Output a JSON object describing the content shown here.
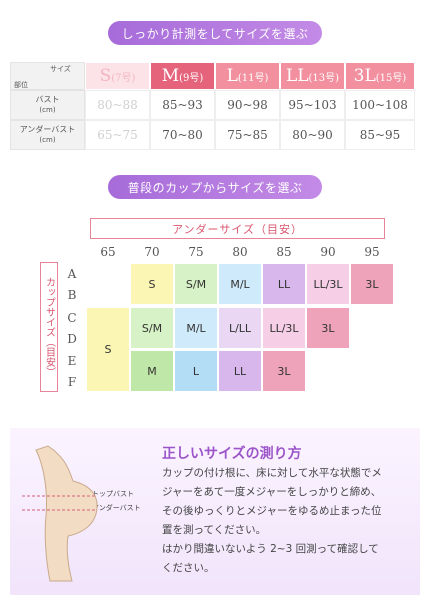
{
  "section1": {
    "heading": "しっかり計測をしてサイズを選ぶ",
    "table": {
      "corner_top": "サイズ",
      "corner_bottom": "部位",
      "sizes": [
        {
          "label": "S",
          "note": "(7号)"
        },
        {
          "label": "M",
          "note": "(9号)"
        },
        {
          "label": "L",
          "note": "(11号)"
        },
        {
          "label": "LL",
          "note": "(13号)"
        },
        {
          "label": "3L",
          "note": "(15号)"
        }
      ],
      "rows": [
        {
          "label": "バスト",
          "unit": "(cm)",
          "cells": [
            "80~88",
            "85~93",
            "90~98",
            "95~103",
            "100~108"
          ]
        },
        {
          "label": "アンダーバスト",
          "unit": "(cm)",
          "cells": [
            "65~75",
            "70~80",
            "75~85",
            "80~90",
            "85~95"
          ]
        }
      ]
    }
  },
  "section2": {
    "heading": "普段のカップからサイズを選ぶ",
    "under_title": "アンダーサイズ（目安）",
    "cup_title": "カップサイズ（目安）",
    "cups": [
      "A",
      "B",
      "C",
      "D",
      "E",
      "F"
    ],
    "columns": [
      {
        "under": "65",
        "cells": [
          "S"
        ]
      },
      {
        "under": "70",
        "cells": [
          "S",
          "S/M",
          "M"
        ]
      },
      {
        "under": "75",
        "cells": [
          "S/M",
          "M/L",
          "L"
        ]
      },
      {
        "under": "80",
        "cells": [
          "M/L",
          "L/LL",
          "LL"
        ]
      },
      {
        "under": "85",
        "cells": [
          "LL",
          "LL/3L",
          "3L"
        ]
      },
      {
        "under": "90",
        "cells": [
          "LL/3L",
          "3L"
        ]
      },
      {
        "under": "95",
        "cells": [
          "3L"
        ]
      }
    ]
  },
  "section3": {
    "title": "正しいサイズの測り方",
    "top_label": "トップバスト",
    "under_label": "アンダーバスト",
    "lines": [
      "カップの付け根に、床に対して水平な状態でメ",
      "ジャーをあて一度メジャーをしっかりと締め、",
      "その後ゆっくりとメジャーをゆるめ止まった位",
      "置を測ってください。",
      "はかり間違いないよう 2~3 回測って確認して",
      "ください。"
    ]
  }
}
